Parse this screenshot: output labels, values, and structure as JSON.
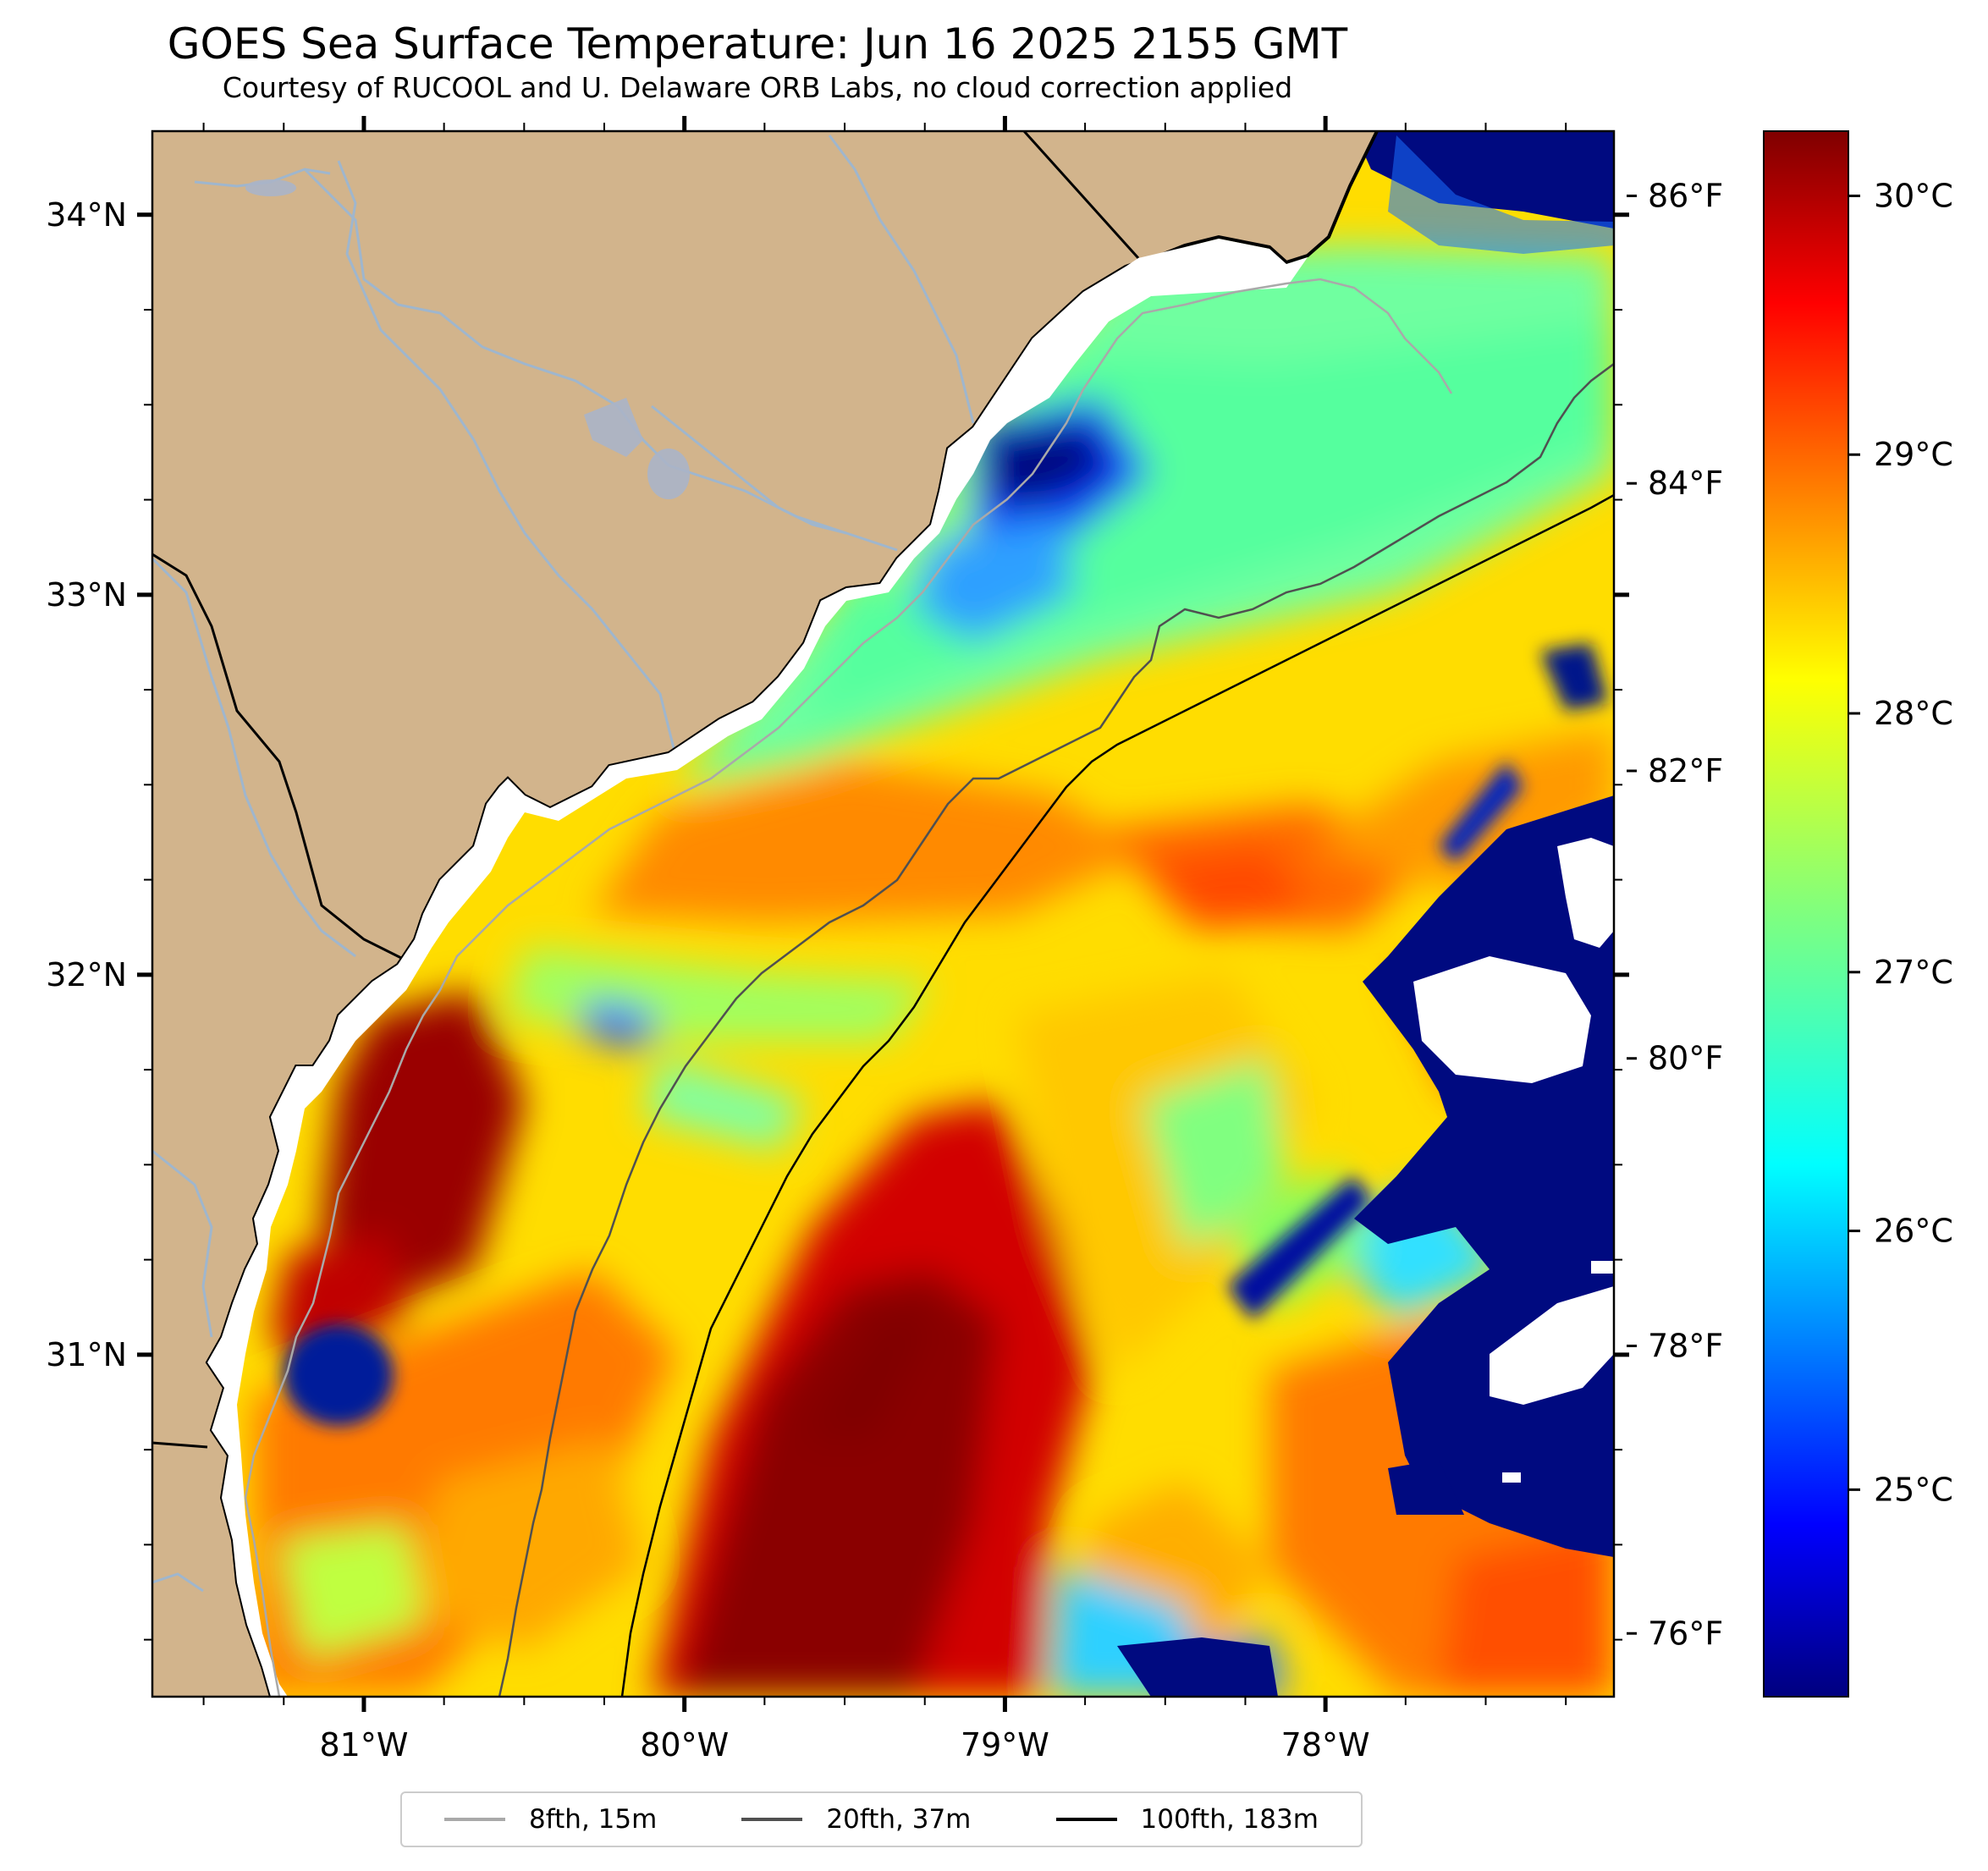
{
  "title": "GOES Sea Surface Temperature: Jun 16 2025 2155 GMT",
  "subtitle": "Courtesy of RUCOOL and U. Delaware ORB Labs, no cloud correction applied",
  "map": {
    "lon_range": [
      -81.66,
      -77.1
    ],
    "lat_range": [
      30.1,
      34.22
    ],
    "lon_ticks": [
      {
        "value": -81,
        "label": "81°W"
      },
      {
        "value": -80,
        "label": "80°W"
      },
      {
        "value": -79,
        "label": "79°W"
      },
      {
        "value": -78,
        "label": "78°W"
      }
    ],
    "lat_ticks": [
      {
        "value": 34,
        "label": "34°N"
      },
      {
        "value": 33,
        "label": "33°N"
      },
      {
        "value": 32,
        "label": "32°N"
      },
      {
        "value": 31,
        "label": "31°N"
      }
    ],
    "colors": {
      "land": "#d2b48c",
      "rivers": "#9fb6cd",
      "coastline": "#000000",
      "cloud_mask": "#ffffff"
    }
  },
  "colorbar": {
    "colormap": "jet",
    "range_c": [
      24.2,
      30.25
    ],
    "celsius_ticks": [
      {
        "value": 30,
        "label": "30°C"
      },
      {
        "value": 29,
        "label": "29°C"
      },
      {
        "value": 28,
        "label": "28°C"
      },
      {
        "value": 27,
        "label": "27°C"
      },
      {
        "value": 26,
        "label": "26°C"
      },
      {
        "value": 25,
        "label": "25°C"
      }
    ],
    "fahrenheit_ticks": [
      {
        "value": 86,
        "label": "86°F"
      },
      {
        "value": 84,
        "label": "84°F"
      },
      {
        "value": 82,
        "label": "82°F"
      },
      {
        "value": 80,
        "label": "80°F"
      },
      {
        "value": 78,
        "label": "78°F"
      },
      {
        "value": 76,
        "label": "76°F"
      }
    ]
  },
  "legend": [
    {
      "label": "8fth, 15m",
      "color": "#a9a9a9"
    },
    {
      "label": "20fth, 37m",
      "color": "#505050"
    },
    {
      "label": "100fth, 183m",
      "color": "#000000"
    }
  ]
}
